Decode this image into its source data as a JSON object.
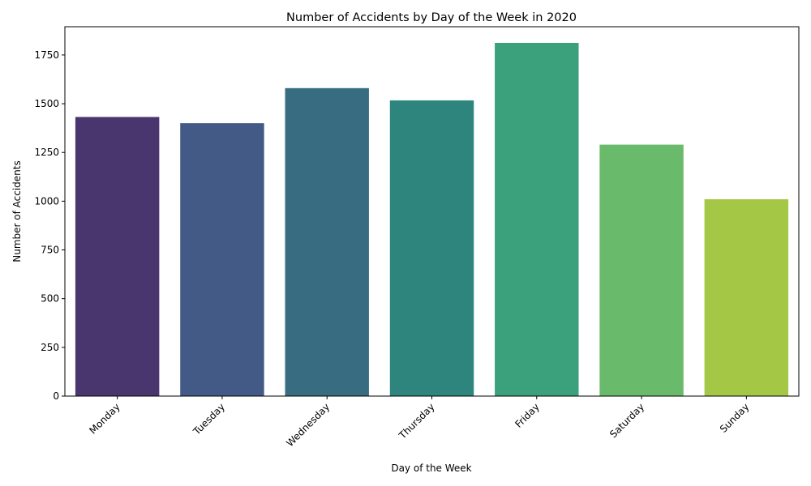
{
  "chart_data": {
    "type": "bar",
    "title": "Number of Accidents by Day of the Week in 2020",
    "xlabel": "Day of the Week",
    "ylabel": "Number of Accidents",
    "categories": [
      "Monday",
      "Tuesday",
      "Wednesday",
      "Thursday",
      "Friday",
      "Saturday",
      "Sunday"
    ],
    "values": [
      1432,
      1400,
      1580,
      1517,
      1812,
      1290,
      1010
    ],
    "colors": [
      "#4a366f",
      "#435a86",
      "#386d81",
      "#2e857e",
      "#3ba17d",
      "#69bb6b",
      "#a4c746"
    ],
    "ylim": [
      0,
      1895
    ],
    "yticks": [
      0,
      250,
      500,
      750,
      1000,
      1250,
      1500,
      1750
    ],
    "ytick_labels": [
      "0",
      "250",
      "500",
      "750",
      "1000",
      "1250",
      "1500",
      "1750"
    ],
    "grid": false,
    "x_tick_rotation": 45
  }
}
